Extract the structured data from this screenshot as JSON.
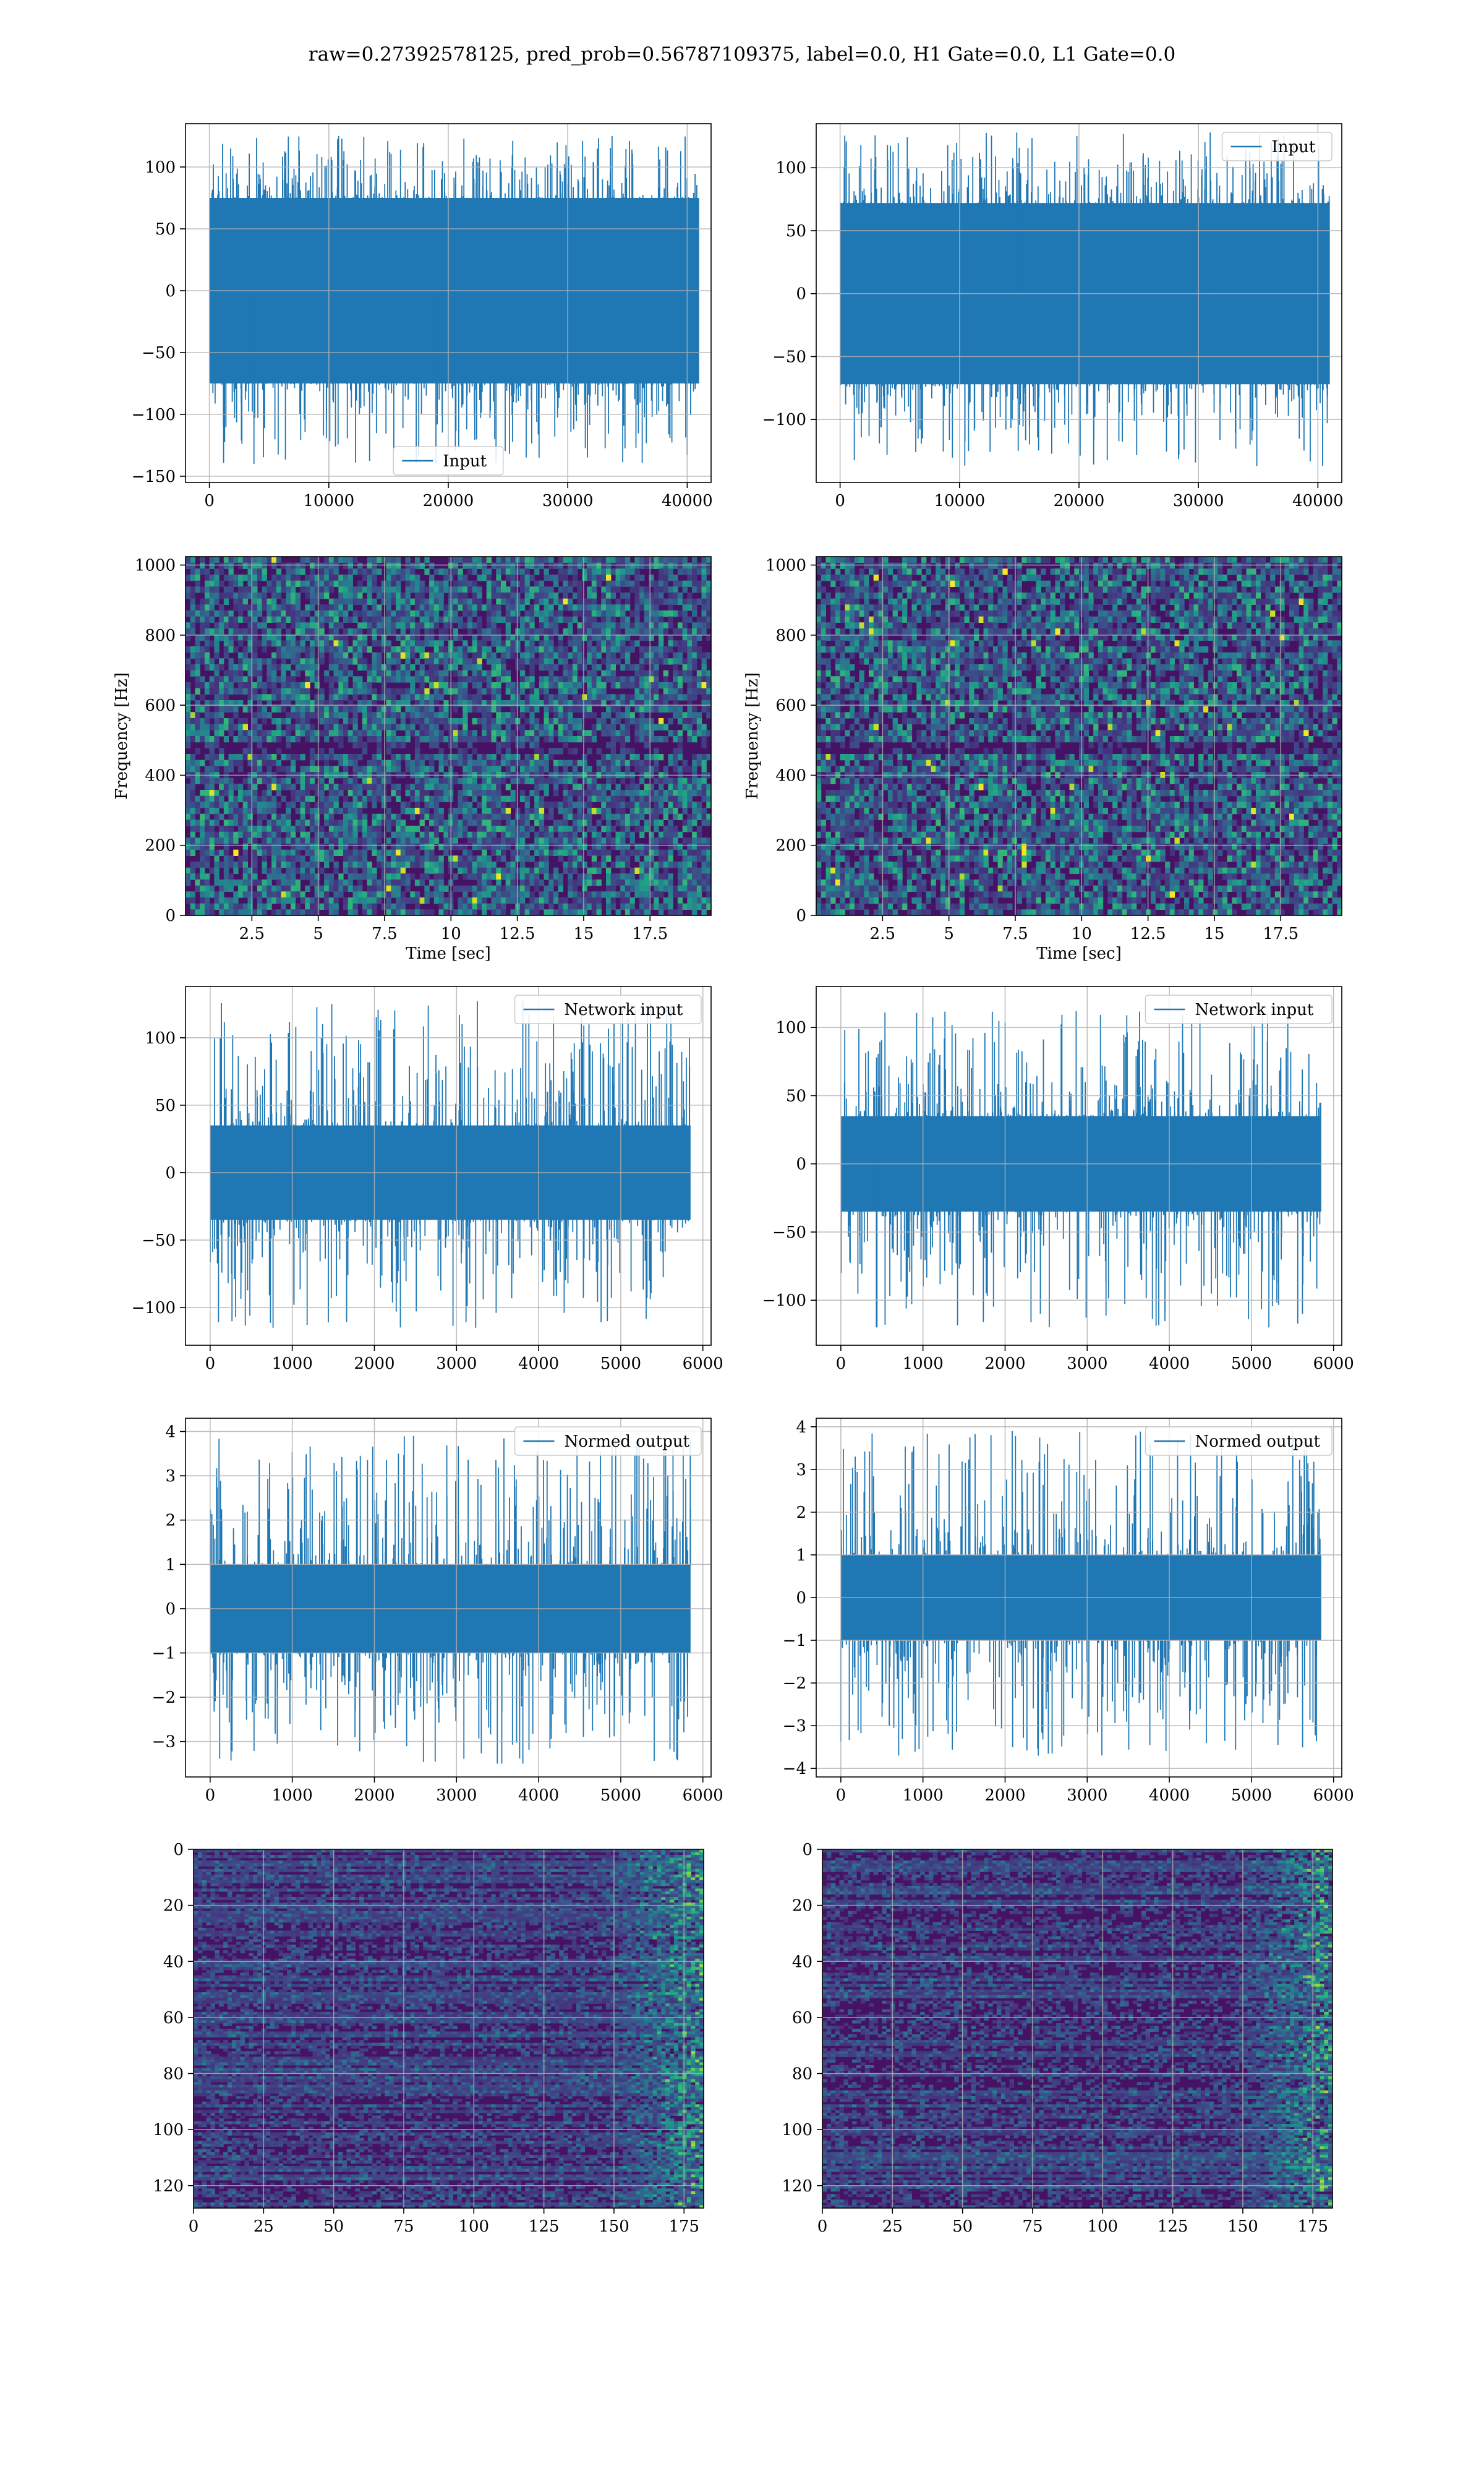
{
  "figure": {
    "title": "raw=0.27392578125, pred_prob=0.56787109375, label=0.0, H1 Gate=0.0, L1 Gate=0.0"
  },
  "colors": {
    "line": "#1f77b4",
    "grid": "#b0b0b0"
  },
  "chart_data": [
    {
      "type": "line",
      "panel": "row1-left",
      "series": [
        {
          "name": "Input"
        }
      ],
      "legend_loc": "lower center",
      "xlim": [
        -2000,
        42000
      ],
      "ylim": [
        -155,
        135
      ],
      "xticks": [
        0,
        10000,
        20000,
        30000,
        40000
      ],
      "yticks": [
        -150,
        -100,
        -50,
        0,
        50,
        100
      ],
      "amplitude": 75,
      "spike_extent": [
        -140,
        125
      ],
      "n_points": 41000
    },
    {
      "type": "line",
      "panel": "row1-right",
      "series": [
        {
          "name": "Input"
        }
      ],
      "legend_loc": "upper right",
      "xlim": [
        -2000,
        42000
      ],
      "ylim": [
        -150,
        135
      ],
      "xticks": [
        0,
        10000,
        20000,
        30000,
        40000
      ],
      "yticks": [
        -100,
        -50,
        0,
        50,
        100
      ],
      "amplitude": 72,
      "spike_extent": [
        -137,
        128
      ],
      "n_points": 41000
    },
    {
      "type": "heatmap",
      "panel": "row2-left",
      "xlabel": "Time [sec]",
      "ylabel": "Frequency [Hz]",
      "xlim": [
        0,
        19.8
      ],
      "ylim": [
        0,
        1024
      ],
      "xticks": [
        2.5,
        5.0,
        7.5,
        10.0,
        12.5,
        15.0,
        17.5
      ],
      "yticks": [
        0,
        200,
        400,
        600,
        800,
        1000
      ]
    },
    {
      "type": "heatmap",
      "panel": "row2-right",
      "xlabel": "Time [sec]",
      "ylabel": "Frequency [Hz]",
      "xlim": [
        0,
        19.8
      ],
      "ylim": [
        0,
        1024
      ],
      "xticks": [
        2.5,
        5.0,
        7.5,
        10.0,
        12.5,
        15.0,
        17.5
      ],
      "yticks": [
        0,
        200,
        400,
        600,
        800,
        1000
      ]
    },
    {
      "type": "line",
      "panel": "row3-left",
      "series": [
        {
          "name": "Network input"
        }
      ],
      "legend_loc": "upper right",
      "xlim": [
        -300,
        6100
      ],
      "ylim": [
        -128,
        138
      ],
      "xticks": [
        0,
        1000,
        2000,
        3000,
        4000,
        5000,
        6000
      ],
      "yticks": [
        -100,
        -50,
        0,
        50,
        100
      ],
      "amplitude": 35,
      "spike_extent": [
        -115,
        127
      ],
      "n_points": 5850
    },
    {
      "type": "line",
      "panel": "row3-right",
      "series": [
        {
          "name": "Network input"
        }
      ],
      "legend_loc": "upper right",
      "xlim": [
        -300,
        6100
      ],
      "ylim": [
        -133,
        130
      ],
      "xticks": [
        0,
        1000,
        2000,
        3000,
        4000,
        5000,
        6000
      ],
      "yticks": [
        -100,
        -50,
        0,
        50,
        100
      ],
      "amplitude": 35,
      "spike_extent": [
        -120,
        112
      ],
      "n_points": 5850
    },
    {
      "type": "line",
      "panel": "row4-left",
      "series": [
        {
          "name": "Normed output"
        }
      ],
      "legend_loc": "upper right",
      "xlim": [
        -300,
        6100
      ],
      "ylim": [
        -3.8,
        4.3
      ],
      "xticks": [
        0,
        1000,
        2000,
        3000,
        4000,
        5000,
        6000
      ],
      "yticks": [
        -3,
        -2,
        -1,
        0,
        1,
        2,
        3,
        4
      ],
      "amplitude": 1.0,
      "spike_extent": [
        -3.5,
        3.9
      ],
      "n_points": 5850
    },
    {
      "type": "line",
      "panel": "row4-right",
      "series": [
        {
          "name": "Normed output"
        }
      ],
      "legend_loc": "upper right",
      "xlim": [
        -300,
        6100
      ],
      "ylim": [
        -4.2,
        4.2
      ],
      "xticks": [
        0,
        1000,
        2000,
        3000,
        4000,
        5000,
        6000
      ],
      "yticks": [
        -4,
        -3,
        -2,
        -1,
        0,
        1,
        2,
        3,
        4
      ],
      "amplitude": 1.0,
      "spike_extent": [
        -3.7,
        3.9
      ],
      "n_points": 5850
    },
    {
      "type": "heatmap",
      "panel": "row5-left",
      "xlim": [
        0,
        182
      ],
      "ylim": [
        128,
        0
      ],
      "xticks": [
        0,
        25,
        50,
        75,
        100,
        125,
        150,
        175
      ],
      "yticks": [
        0,
        20,
        40,
        60,
        80,
        100,
        120
      ]
    },
    {
      "type": "heatmap",
      "panel": "row5-right",
      "xlim": [
        0,
        182
      ],
      "ylim": [
        128,
        0
      ],
      "xticks": [
        0,
        25,
        50,
        75,
        100,
        125,
        150,
        175
      ],
      "yticks": [
        0,
        20,
        40,
        60,
        80,
        100,
        120
      ]
    }
  ]
}
